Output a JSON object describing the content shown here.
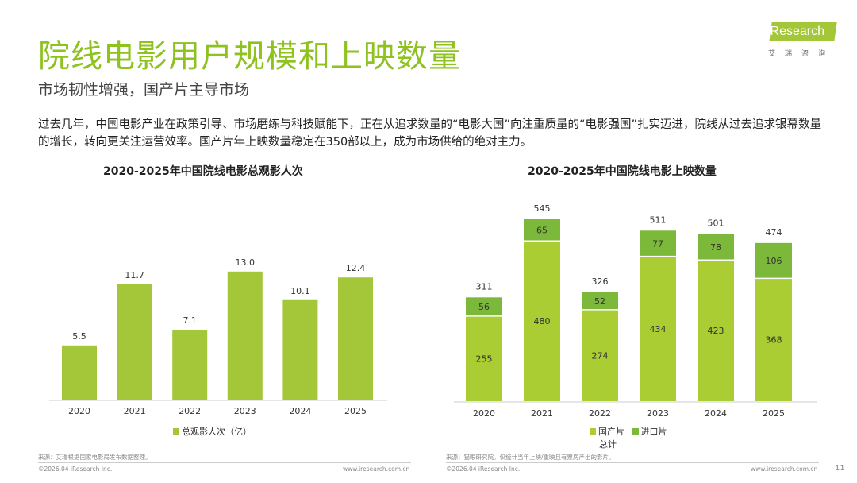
{
  "title": "院线电影用户规模和上映数量",
  "subtitle": "市场韧性增强，国产片主导市场",
  "body": "过去几年，中国电影产业在政策引导、市场磨练与科技赋能下，正在从追求数量的“电影大国”向注重质量的“电影强国”扎实迈进，院线从过去追求银幕数量的增长，转向更关注运营效率。国产片年上映数量稳定在350部以上，成为市场供给的绝对主力。",
  "logo": {
    "text": "iResearch",
    "sub": "艾瑞咨询"
  },
  "colors": {
    "accent": "#8dc21f",
    "bar": "#a4c639",
    "domestic": "#a9cd33",
    "imported": "#7cb83a"
  },
  "chart_data": [
    {
      "type": "bar",
      "title": "2020-2025年中国院线电影总观影人次",
      "categories": [
        "2020",
        "2021",
        "2022",
        "2023",
        "2024",
        "2025"
      ],
      "series": [
        {
          "name": "总观影人次（亿）",
          "values": [
            5.5,
            11.7,
            7.1,
            13.0,
            10.1,
            12.4
          ]
        }
      ],
      "labels": [
        "5.5",
        "11.7",
        "7.1",
        "13.0",
        "10.1",
        "12.4"
      ],
      "ylim": [
        0,
        14
      ],
      "grid": false,
      "legend": "bottom"
    },
    {
      "type": "bar",
      "stacked": true,
      "title": "2020-2025年中国院线电影上映数量",
      "categories": [
        "2020",
        "2021",
        "2022",
        "2023",
        "2024",
        "2025"
      ],
      "series": [
        {
          "name": "国产片",
          "values": [
            255,
            480,
            274,
            434,
            423,
            368
          ]
        },
        {
          "name": "进口片",
          "values": [
            56,
            65,
            52,
            77,
            78,
            106
          ]
        }
      ],
      "totals_label": "总计",
      "totals": [
        311,
        545,
        326,
        511,
        501,
        474
      ],
      "ylim": [
        0,
        560
      ],
      "grid": false,
      "legend": "bottom"
    }
  ],
  "footer": {
    "source_left": "来源：艾瑞根据国家电影局发布数据整理。",
    "source_right": "来源：猫眼研究院。仅统计当年上映/重映且有票房产出的影片。",
    "copyright": "©2026.04 iResearch Inc.",
    "url": "www.iresearch.com.cn",
    "page": "11"
  }
}
